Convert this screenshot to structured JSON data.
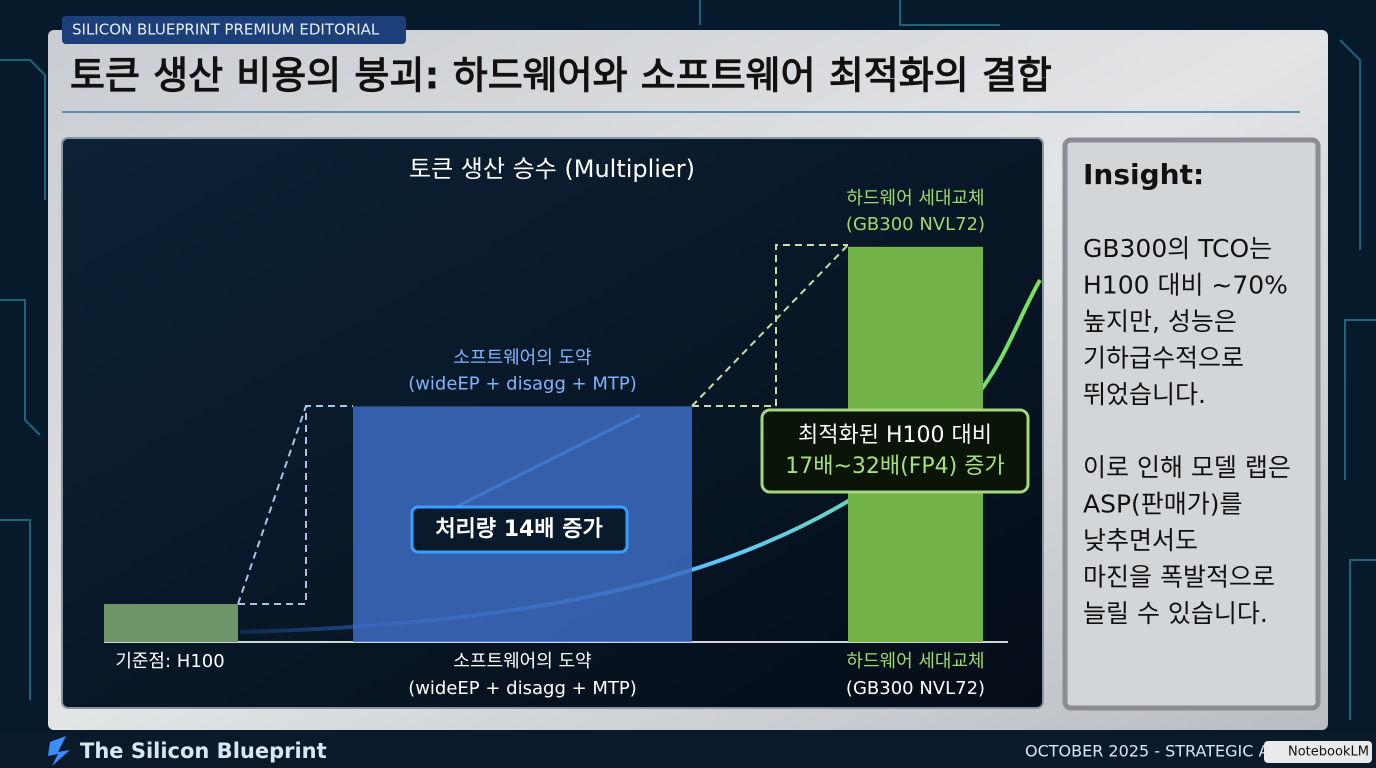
{
  "badge": "SILICON BLUEPRINT PREMIUM EDITORIAL",
  "title": "토큰 생산 비용의 붕괴: 하드웨어와 소프트웨어 최적화의 결합",
  "chart_data": {
    "type": "bar",
    "title": "토큰 생산 승수 (Multiplier)",
    "categories": [
      "기준점: H100",
      "소프트웨어의 도약",
      "하드웨어 세대교체"
    ],
    "category_sublabels": [
      null,
      "(wideEP + disagg + MTP)",
      "(GB300 NVL72)"
    ],
    "values": [
      1,
      6.2,
      10.4
    ],
    "colors": [
      "#6f9668",
      "#3d6cc2",
      "#74b347"
    ],
    "ylim": [
      0,
      11
    ],
    "top_labels": [
      null,
      "소프트웨어의 도약",
      "하드웨어 세대교체"
    ],
    "top_sublabels": [
      null,
      "(wideEP + disagg + MTP)",
      "(GB300 NVL72)"
    ],
    "annotations": [
      "처리량 14배 증가",
      "최적화된 H100 대비",
      "17배~32배(FP4) 증가"
    ]
  },
  "insight": {
    "heading": "Insight:",
    "lines": [
      "GB300의 TCO는",
      "H100 대비 ~70%",
      "높지만, 성능은",
      "기하급수적으로",
      "뛰었습니다.",
      "",
      "이로 인해 모델 랩은",
      "ASP(판매가)를",
      "낮추면서도",
      "마진을 폭발적으로",
      "늘릴 수 있습니다."
    ]
  },
  "footer": {
    "brand": "The Silicon Blueprint",
    "date": "OCTOBER 2025 - STRATEGIC A",
    "tool": "NotebookLM"
  }
}
